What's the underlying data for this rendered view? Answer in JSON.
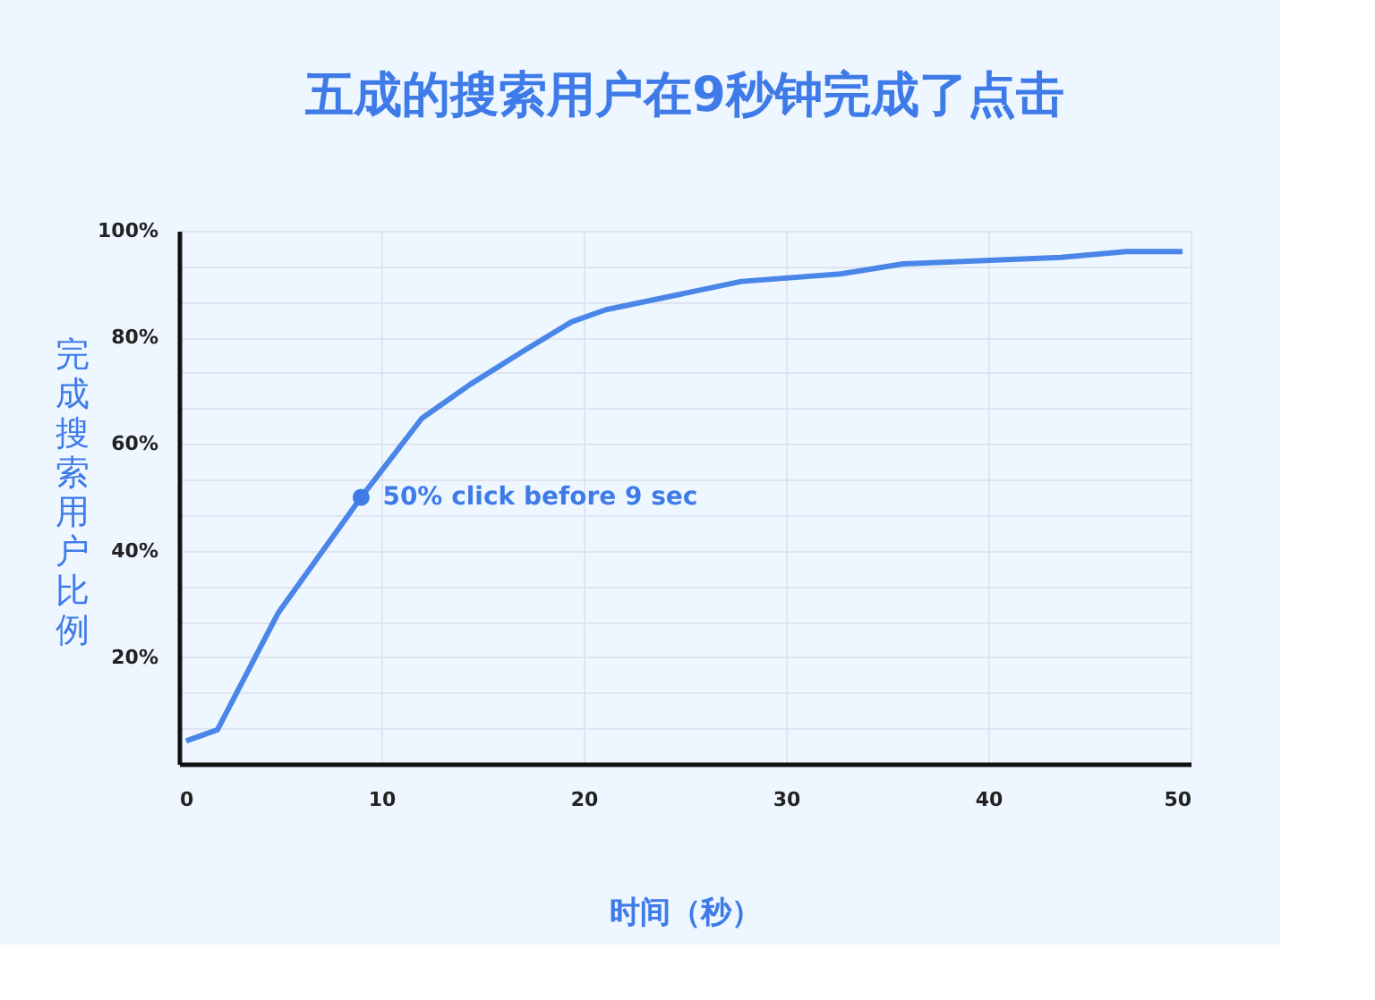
{
  "chart_data": {
    "type": "line",
    "title": "五成的搜索用户在9秒钟完成了点击",
    "xlabel": "时间（秒）",
    "ylabel": "完成搜索用户比例",
    "x": [
      0.35,
      1.9,
      4.9,
      9,
      12.0,
      14.4,
      17.0,
      19.4,
      21.1,
      24.4,
      27.8,
      32.7,
      35.8,
      43.6,
      46.8,
      49.6
    ],
    "series": [
      {
        "color": "#4a86e8",
        "values": [
          4.3,
          6.4,
          28.3,
          50,
          64.8,
          71.2,
          77.4,
          82.9,
          85.2,
          87.8,
          90.5,
          91.9,
          93.8,
          95.0,
          96.1,
          96.1
        ]
      }
    ],
    "xlim": [
      0,
      50
    ],
    "xticks": [
      0,
      10,
      20,
      30,
      40,
      50
    ],
    "ylim": [
      0,
      100
    ],
    "yticks": [
      {
        "value": 6.67,
        "label": null
      },
      {
        "value": 13.33,
        "label": null
      },
      {
        "value": 20,
        "label": "20%"
      },
      {
        "value": 26.67,
        "label": null
      },
      {
        "value": 33.33,
        "label": null
      },
      {
        "value": 40,
        "label": "40%"
      },
      {
        "value": 46.67,
        "label": null
      },
      {
        "value": 53.33,
        "label": null
      },
      {
        "value": 60,
        "label": "60%"
      },
      {
        "value": 66.67,
        "label": null
      },
      {
        "value": 73.33,
        "label": null
      },
      {
        "value": 80,
        "label": "80%"
      },
      {
        "value": 86.67,
        "label": null
      },
      {
        "value": 93.33,
        "label": null
      },
      {
        "value": 100,
        "label": "100%"
      }
    ],
    "annotations": [
      {
        "text": "50% click before 9 sec",
        "x": 9,
        "y": 50
      }
    ],
    "grid": true,
    "marker": "none",
    "line_style": "solid"
  }
}
